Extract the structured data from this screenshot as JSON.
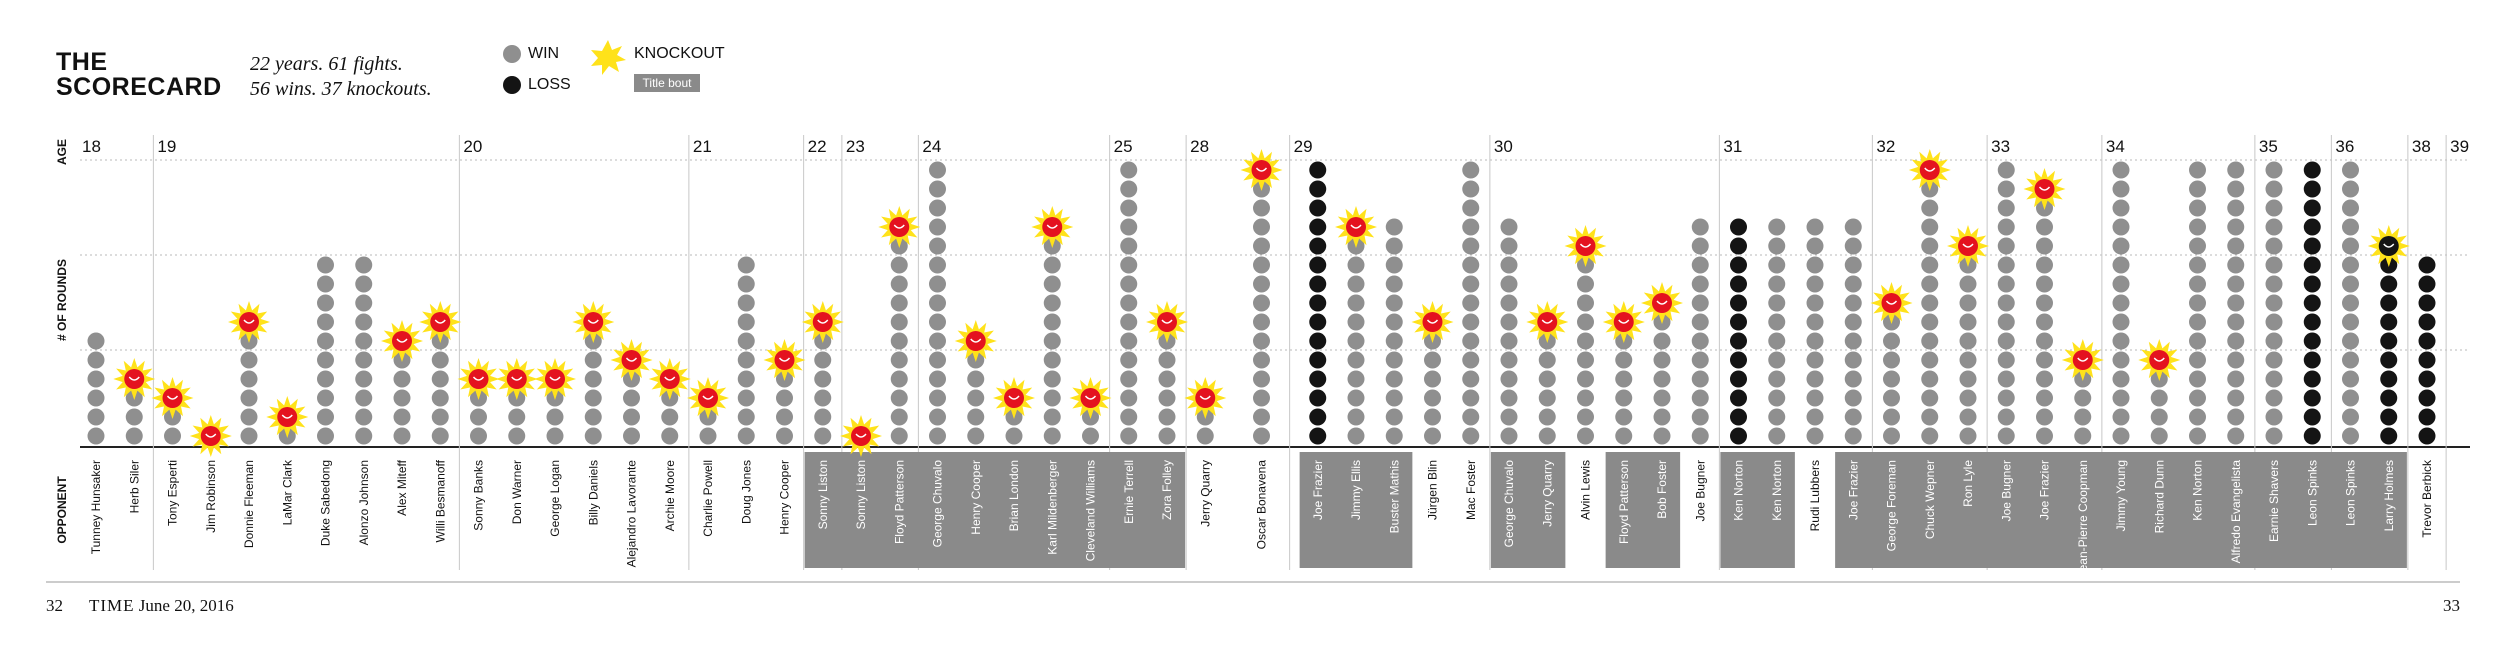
{
  "header": {
    "title": "THE\nSCORECARD",
    "subtitle": "22 years. 61 fights.\n56 wins. 37 knockouts."
  },
  "legend": {
    "win": "WIN",
    "loss": "LOSS",
    "knockout": "KNOCKOUT",
    "title_bout": "Title bout"
  },
  "axis_labels": {
    "age": "AGE",
    "rounds": "# OF ROUNDS",
    "opponent": "OPPONENT"
  },
  "footer": {
    "page_left": "32",
    "magazine": "TIME",
    "date": "June 20, 2016",
    "page_right": "33"
  },
  "colors": {
    "win": "#8f8f8f",
    "loss": "#141414",
    "knockout_star": "#ffe21a",
    "knockout_glove": "#e4121f",
    "title_bout": "#8a8a8a"
  },
  "chart_data": {
    "type": "dot-column",
    "title": "THE SCORECARD",
    "ylabel": "# OF ROUNDS",
    "xlabel": "OPPONENT",
    "ylim": [
      0,
      15
    ],
    "age_labels": [
      {
        "age": 18,
        "at": 0
      },
      {
        "age": 19,
        "at": 2
      },
      {
        "age": 20,
        "at": 10
      },
      {
        "age": 21,
        "at": 16
      },
      {
        "age": 22,
        "at": 19
      },
      {
        "age": 23,
        "at": 20
      },
      {
        "age": 24,
        "at": 22
      },
      {
        "age": 25,
        "at": 27
      },
      {
        "age": 28,
        "at": 29
      },
      {
        "age": 29,
        "at": 31
      },
      {
        "age": 30,
        "at": 36
      },
      {
        "age": 31,
        "at": 42
      },
      {
        "age": 32,
        "at": 46
      },
      {
        "age": 33,
        "at": 49
      },
      {
        "age": 34,
        "at": 52
      },
      {
        "age": 35,
        "at": 56
      },
      {
        "age": 36,
        "at": 58
      },
      {
        "age": 38,
        "at": 60
      },
      {
        "age": 39,
        "at": 61
      }
    ],
    "fights": [
      {
        "opponent": "Tunney Hunsaker",
        "rounds": 6,
        "result": "win",
        "ko": false,
        "title": false
      },
      {
        "opponent": "Herb Siler",
        "rounds": 4,
        "result": "win",
        "ko": true,
        "title": false
      },
      {
        "opponent": "Tony Esperti",
        "rounds": 3,
        "result": "win",
        "ko": true,
        "title": false
      },
      {
        "opponent": "Jim Robinson",
        "rounds": 1,
        "result": "win",
        "ko": true,
        "title": false
      },
      {
        "opponent": "Donnie Fleeman",
        "rounds": 7,
        "result": "win",
        "ko": true,
        "title": false
      },
      {
        "opponent": "LaMar Clark",
        "rounds": 2,
        "result": "win",
        "ko": true,
        "title": false
      },
      {
        "opponent": "Duke Sabedong",
        "rounds": 10,
        "result": "win",
        "ko": false,
        "title": false
      },
      {
        "opponent": "Alonzo Johnson",
        "rounds": 10,
        "result": "win",
        "ko": false,
        "title": false
      },
      {
        "opponent": "Alex Miteff",
        "rounds": 6,
        "result": "win",
        "ko": true,
        "title": false
      },
      {
        "opponent": "Willi Besmanoff",
        "rounds": 7,
        "result": "win",
        "ko": true,
        "title": false
      },
      {
        "opponent": "Sonny Banks",
        "rounds": 4,
        "result": "win",
        "ko": true,
        "title": false
      },
      {
        "opponent": "Don Warner",
        "rounds": 4,
        "result": "win",
        "ko": true,
        "title": false
      },
      {
        "opponent": "George Logan",
        "rounds": 4,
        "result": "win",
        "ko": true,
        "title": false
      },
      {
        "opponent": "Billy Daniels",
        "rounds": 7,
        "result": "win",
        "ko": true,
        "title": false
      },
      {
        "opponent": "Alejandro Lavorante",
        "rounds": 5,
        "result": "win",
        "ko": true,
        "title": false
      },
      {
        "opponent": "Archie Moore",
        "rounds": 4,
        "result": "win",
        "ko": true,
        "title": false
      },
      {
        "opponent": "Charlie Powell",
        "rounds": 3,
        "result": "win",
        "ko": true,
        "title": false
      },
      {
        "opponent": "Doug Jones",
        "rounds": 10,
        "result": "win",
        "ko": false,
        "title": false
      },
      {
        "opponent": "Henry Cooper",
        "rounds": 5,
        "result": "win",
        "ko": true,
        "title": false
      },
      {
        "opponent": "Sonny Liston",
        "rounds": 7,
        "result": "win",
        "ko": true,
        "title": true
      },
      {
        "opponent": "Sonny Liston",
        "rounds": 1,
        "result": "win",
        "ko": true,
        "title": true
      },
      {
        "opponent": "Floyd Patterson",
        "rounds": 12,
        "result": "win",
        "ko": true,
        "title": true
      },
      {
        "opponent": "George Chuvalo",
        "rounds": 15,
        "result": "win",
        "ko": false,
        "title": true
      },
      {
        "opponent": "Henry Cooper",
        "rounds": 6,
        "result": "win",
        "ko": true,
        "title": true
      },
      {
        "opponent": "Brian London",
        "rounds": 3,
        "result": "win",
        "ko": true,
        "title": true
      },
      {
        "opponent": "Karl Mildenberger",
        "rounds": 12,
        "result": "win",
        "ko": true,
        "title": true
      },
      {
        "opponent": "Cleveland Williams",
        "rounds": 3,
        "result": "win",
        "ko": true,
        "title": true
      },
      {
        "opponent": "Ernie Terrell",
        "rounds": 15,
        "result": "win",
        "ko": false,
        "title": true
      },
      {
        "opponent": "Zora Folley",
        "rounds": 7,
        "result": "win",
        "ko": true,
        "title": true
      },
      {
        "opponent": "Jerry Quarry",
        "rounds": 3,
        "result": "win",
        "ko": true,
        "title": false
      },
      {
        "opponent": "Oscar Bonavena",
        "rounds": 15,
        "result": "win",
        "ko": true,
        "title": false
      },
      {
        "opponent": "Joe Frazier",
        "rounds": 15,
        "result": "loss",
        "ko": false,
        "title": true
      },
      {
        "opponent": "Jimmy Ellis",
        "rounds": 12,
        "result": "win",
        "ko": true,
        "title": true
      },
      {
        "opponent": "Buster Mathis",
        "rounds": 12,
        "result": "win",
        "ko": false,
        "title": true
      },
      {
        "opponent": "Jürgen Blin",
        "rounds": 7,
        "result": "win",
        "ko": true,
        "title": false
      },
      {
        "opponent": "Mac Foster",
        "rounds": 15,
        "result": "win",
        "ko": false,
        "title": false
      },
      {
        "opponent": "George Chuvalo",
        "rounds": 12,
        "result": "win",
        "ko": false,
        "title": true
      },
      {
        "opponent": "Jerry Quarry",
        "rounds": 7,
        "result": "win",
        "ko": true,
        "title": true
      },
      {
        "opponent": "Alvin Lewis",
        "rounds": 11,
        "result": "win",
        "ko": true,
        "title": false
      },
      {
        "opponent": "Floyd Patterson",
        "rounds": 7,
        "result": "win",
        "ko": true,
        "title": true
      },
      {
        "opponent": "Bob Foster",
        "rounds": 8,
        "result": "win",
        "ko": true,
        "title": true
      },
      {
        "opponent": "Joe Bugner",
        "rounds": 12,
        "result": "win",
        "ko": false,
        "title": false
      },
      {
        "opponent": "Ken Norton",
        "rounds": 12,
        "result": "loss",
        "ko": false,
        "title": true
      },
      {
        "opponent": "Ken Norton",
        "rounds": 12,
        "result": "win",
        "ko": false,
        "title": true
      },
      {
        "opponent": "Rudi Lubbers",
        "rounds": 12,
        "result": "win",
        "ko": false,
        "title": false
      },
      {
        "opponent": "Joe Frazier",
        "rounds": 12,
        "result": "win",
        "ko": false,
        "title": true
      },
      {
        "opponent": "George Foreman",
        "rounds": 8,
        "result": "win",
        "ko": true,
        "title": true
      },
      {
        "opponent": "Chuck Wepner",
        "rounds": 15,
        "result": "win",
        "ko": true,
        "title": true
      },
      {
        "opponent": "Ron Lyle",
        "rounds": 11,
        "result": "win",
        "ko": true,
        "title": true
      },
      {
        "opponent": "Joe Bugner",
        "rounds": 15,
        "result": "win",
        "ko": false,
        "title": true
      },
      {
        "opponent": "Joe Frazier",
        "rounds": 14,
        "result": "win",
        "ko": true,
        "title": true
      },
      {
        "opponent": "Jean-Pierre Coopman",
        "rounds": 5,
        "result": "win",
        "ko": true,
        "title": true
      },
      {
        "opponent": "Jimmy Young",
        "rounds": 15,
        "result": "win",
        "ko": false,
        "title": true
      },
      {
        "opponent": "Richard Dunn",
        "rounds": 5,
        "result": "win",
        "ko": true,
        "title": true
      },
      {
        "opponent": "Ken Norton",
        "rounds": 15,
        "result": "win",
        "ko": false,
        "title": true
      },
      {
        "opponent": "Alfredo Evangelista",
        "rounds": 15,
        "result": "win",
        "ko": false,
        "title": true
      },
      {
        "opponent": "Earnie Shavers",
        "rounds": 15,
        "result": "win",
        "ko": false,
        "title": true
      },
      {
        "opponent": "Leon Spinks",
        "rounds": 15,
        "result": "loss",
        "ko": false,
        "title": true
      },
      {
        "opponent": "Leon Spinks",
        "rounds": 15,
        "result": "win",
        "ko": false,
        "title": true
      },
      {
        "opponent": "Larry Holmes",
        "rounds": 11,
        "result": "loss",
        "ko": true,
        "title": true
      },
      {
        "opponent": "Trevor Berbick",
        "rounds": 10,
        "result": "loss",
        "ko": false,
        "title": false
      }
    ]
  }
}
